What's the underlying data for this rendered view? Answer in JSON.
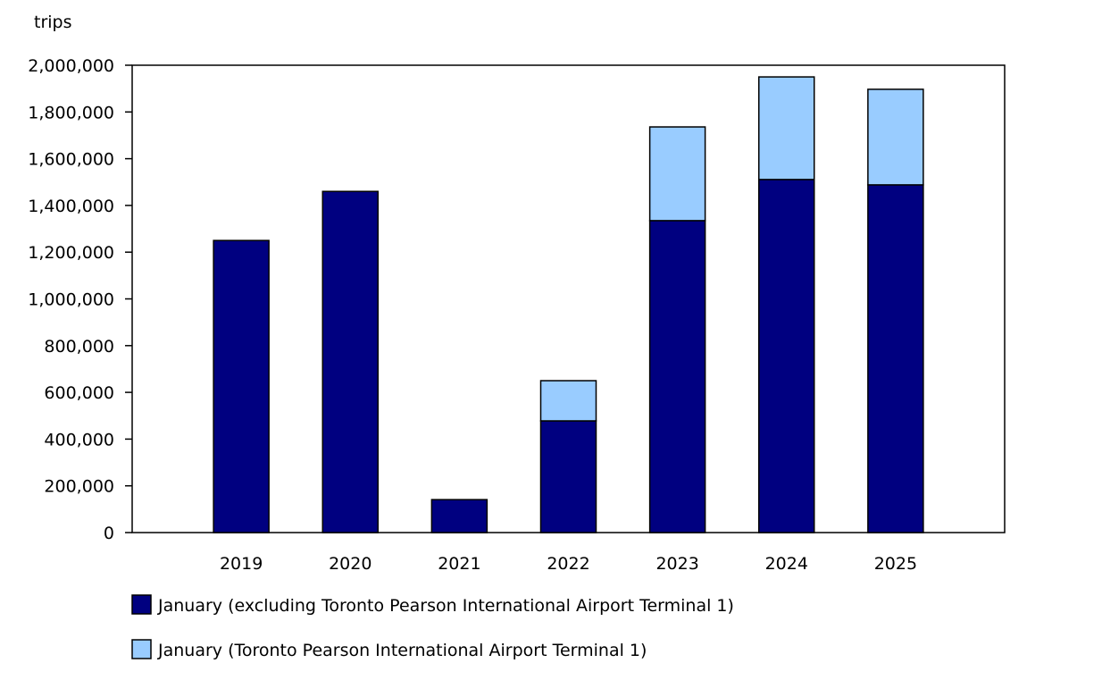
{
  "chart_data": {
    "type": "bar",
    "stacked": true,
    "title": "",
    "ylabel": "trips",
    "xlabel": "",
    "categories": [
      "2019",
      "2020",
      "2021",
      "2022",
      "2023",
      "2024",
      "2025"
    ],
    "ylim": [
      0,
      2000000
    ],
    "yticks": [
      0,
      200000,
      400000,
      600000,
      800000,
      1000000,
      1200000,
      1400000,
      1600000,
      1800000,
      2000000
    ],
    "ytick_labels": [
      "0",
      "200,000",
      "400,000",
      "600,000",
      "800,000",
      "1,000,000",
      "1,200,000",
      "1,400,000",
      "1,600,000",
      "1,800,000",
      "2,000,000"
    ],
    "grid": false,
    "legend_position": "bottom",
    "series": [
      {
        "name": "January (excluding Toronto Pearson International Airport Terminal 1)",
        "color": "#000080",
        "values": [
          1250000,
          1460000,
          141000,
          478000,
          1335000,
          1511000,
          1488000
        ]
      },
      {
        "name": "January (Toronto Pearson International Airport Terminal 1)",
        "color": "#99ccff",
        "values": [
          0,
          0,
          0,
          172000,
          401000,
          439000,
          409000
        ]
      }
    ]
  }
}
